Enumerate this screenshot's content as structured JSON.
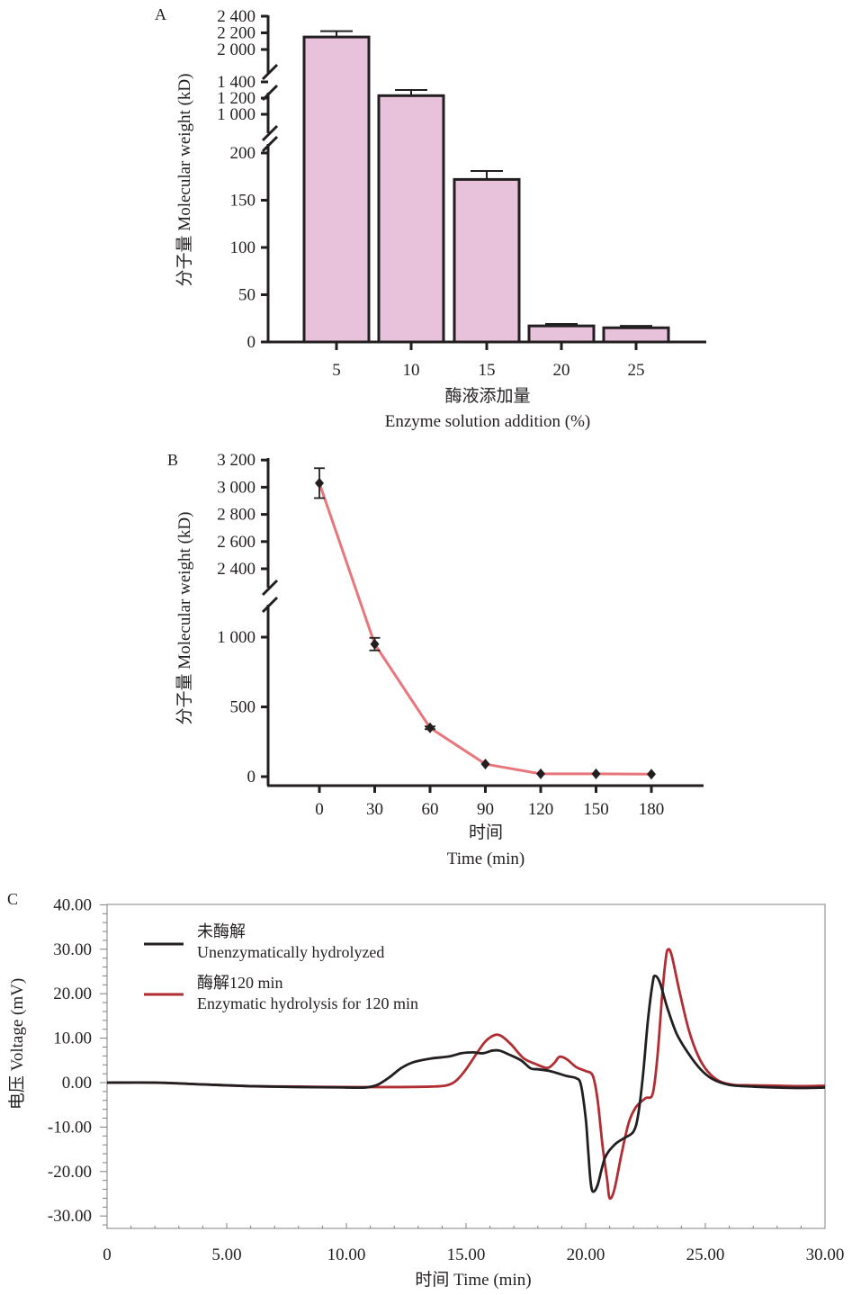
{
  "chart_data": [
    {
      "panel": "A",
      "type": "bar",
      "panel_label": "A",
      "title": "",
      "xlabel_cn": "酶液添加量",
      "xlabel": "Enzyme solution addition (%)",
      "ylabel": "分子量 Molecular weight (kD)",
      "categories": [
        "5",
        "10",
        "15",
        "20",
        "25"
      ],
      "values": [
        2150,
        1230,
        172,
        17,
        15
      ],
      "errors": [
        70,
        70,
        9,
        2,
        2
      ],
      "y_axis_broken": true,
      "y_segments": [
        {
          "range": [
            0,
            200
          ],
          "ticks": [
            "0",
            "50",
            "100",
            "150",
            "200"
          ]
        },
        {
          "range": [
            1000,
            1400
          ],
          "ticks": [
            "1 000",
            "1 200",
            "1 400"
          ]
        },
        {
          "range": [
            2000,
            2400
          ],
          "ticks": [
            "2 000",
            "2 200",
            "2 400"
          ]
        }
      ],
      "bar_color": "#e8c1db",
      "edge_color": "#231f20"
    },
    {
      "panel": "B",
      "type": "line",
      "panel_label": "B",
      "title": "",
      "xlabel_cn": "时间",
      "xlabel": "Time (min)",
      "ylabel": "分子量 Molecular weight (kD)",
      "x": [
        0,
        30,
        60,
        90,
        120,
        150,
        180
      ],
      "x_ticks": [
        "0",
        "30",
        "60",
        "90",
        "120",
        "150",
        "180"
      ],
      "values": [
        3030,
        950,
        350,
        90,
        20,
        20,
        18
      ],
      "errors": [
        110,
        45,
        10,
        5,
        3,
        3,
        3
      ],
      "y_axis_broken": true,
      "y_segments": [
        {
          "range": [
            0,
            1000
          ],
          "ticks": [
            "0",
            "500",
            "1 000"
          ]
        },
        {
          "range": [
            2400,
            3200
          ],
          "ticks": [
            "2 400",
            "2 600",
            "2 800",
            "3 000",
            "3 200"
          ]
        }
      ],
      "line_color": "#e8777c",
      "marker": "diamond",
      "marker_color": "#231f20"
    },
    {
      "panel": "C",
      "type": "line",
      "panel_label": "C",
      "title": "",
      "xlabel": "时间  Time  (min)",
      "ylabel": "电压 Voltage (mV)",
      "xlim": [
        0,
        30
      ],
      "ylim": [
        -33,
        40
      ],
      "x_ticks": [
        "0",
        "5.00",
        "10.00",
        "15.00",
        "20.00",
        "25.00",
        "30.00"
      ],
      "x_tick_values": [
        0,
        5,
        10,
        15,
        20,
        25,
        30
      ],
      "y_ticks": [
        "40.00",
        "30.00",
        "20.00",
        "10.00",
        "0.00",
        "-10.00",
        "-20.00",
        "-30.00"
      ],
      "y_tick_values": [
        40,
        30,
        20,
        10,
        0,
        -10,
        -20,
        -30
      ],
      "legend_position": "top-left",
      "series": [
        {
          "name_cn": "未酶解",
          "name": "Unenzymatically hydrolyzed",
          "color": "#231f20",
          "points": [
            [
              0,
              0
            ],
            [
              2,
              0
            ],
            [
              4,
              -0.4
            ],
            [
              6,
              -0.8
            ],
            [
              8,
              -1
            ],
            [
              10,
              -1.1
            ],
            [
              10.8,
              -1.1
            ],
            [
              11.3,
              -0.5
            ],
            [
              11.8,
              1.2
            ],
            [
              12.3,
              3.3
            ],
            [
              12.8,
              4.6
            ],
            [
              13.5,
              5.4
            ],
            [
              14.3,
              5.9
            ],
            [
              14.8,
              6.6
            ],
            [
              15.3,
              6.8
            ],
            [
              15.7,
              6.6
            ],
            [
              16.1,
              7.2
            ],
            [
              16.4,
              7.2
            ],
            [
              16.8,
              6.3
            ],
            [
              17.3,
              5.0
            ],
            [
              17.7,
              3.2
            ],
            [
              18,
              3.0
            ],
            [
              18.5,
              2.6
            ],
            [
              19.2,
              1.5
            ],
            [
              19.6,
              1.0
            ],
            [
              19.8,
              -0.5
            ],
            [
              20,
              -8
            ],
            [
              20.1,
              -15
            ],
            [
              20.2,
              -22
            ],
            [
              20.3,
              -24.5
            ],
            [
              20.5,
              -23
            ],
            [
              20.8,
              -17
            ],
            [
              21.2,
              -14
            ],
            [
              21.6,
              -12.5
            ],
            [
              22,
              -11
            ],
            [
              22.2,
              -7
            ],
            [
              22.4,
              2
            ],
            [
              22.6,
              14
            ],
            [
              22.8,
              22.5
            ],
            [
              22.9,
              24
            ],
            [
              23.1,
              22.5
            ],
            [
              23.4,
              17
            ],
            [
              23.8,
              11
            ],
            [
              24.3,
              6.5
            ],
            [
              24.8,
              3
            ],
            [
              25.3,
              0.8
            ],
            [
              26,
              -0.5
            ],
            [
              27,
              -0.9
            ],
            [
              28,
              -1.1
            ],
            [
              29,
              -1.2
            ],
            [
              30,
              -1.1
            ]
          ]
        },
        {
          "name_cn": "酶解120 min",
          "name": "Enzymatic hydrolysis for 120 min",
          "color": "#b02e33",
          "points": [
            [
              0,
              0
            ],
            [
              2,
              0
            ],
            [
              4,
              -0.4
            ],
            [
              6,
              -0.8
            ],
            [
              8,
              -0.9
            ],
            [
              10,
              -1
            ],
            [
              12,
              -1
            ],
            [
              13.5,
              -0.9
            ],
            [
              14.2,
              -0.6
            ],
            [
              14.6,
              0.5
            ],
            [
              15.0,
              3
            ],
            [
              15.4,
              6.2
            ],
            [
              15.8,
              9.2
            ],
            [
              16.2,
              10.7
            ],
            [
              16.5,
              10.4
            ],
            [
              16.9,
              8.5
            ],
            [
              17.4,
              5.5
            ],
            [
              17.9,
              4.2
            ],
            [
              18.4,
              3.3
            ],
            [
              18.7,
              4.5
            ],
            [
              18.9,
              5.8
            ],
            [
              19.2,
              5.3
            ],
            [
              19.6,
              3.5
            ],
            [
              20.0,
              2.6
            ],
            [
              20.3,
              1.5
            ],
            [
              20.5,
              -4
            ],
            [
              20.7,
              -14
            ],
            [
              20.9,
              -22
            ],
            [
              21.0,
              -26
            ],
            [
              21.2,
              -24
            ],
            [
              21.5,
              -16
            ],
            [
              21.8,
              -9
            ],
            [
              22.1,
              -5.5
            ],
            [
              22.5,
              -3.5
            ],
            [
              22.8,
              -2.5
            ],
            [
              23.0,
              6
            ],
            [
              23.2,
              20
            ],
            [
              23.35,
              28
            ],
            [
              23.45,
              30
            ],
            [
              23.6,
              28.5
            ],
            [
              23.9,
              21
            ],
            [
              24.3,
              12
            ],
            [
              24.7,
              6
            ],
            [
              25.1,
              2.5
            ],
            [
              25.6,
              0.3
            ],
            [
              26.2,
              -0.5
            ],
            [
              27,
              -0.6
            ],
            [
              28,
              -0.7
            ],
            [
              29,
              -0.8
            ],
            [
              30,
              -0.7
            ]
          ]
        }
      ]
    }
  ]
}
